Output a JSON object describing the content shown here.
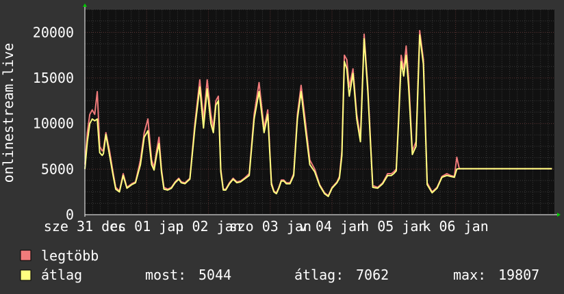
{
  "chart_data": {
    "type": "line",
    "ylabel": "onlinestream.live",
    "ylim": [
      0,
      22500
    ],
    "yticks": [
      0,
      5000,
      10000,
      15000,
      20000
    ],
    "ytick_labels": [
      "0",
      "5000",
      "10000",
      "15000",
      "20000"
    ],
    "x_range": [
      0,
      7.6
    ],
    "xticks": [
      {
        "x": 0.0,
        "label": "sze 31 dec"
      },
      {
        "x": 1.0,
        "label": "cs 01 jan"
      },
      {
        "x": 2.0,
        "label": "p 02 jan"
      },
      {
        "x": 3.0,
        "label": "szo 03 jan"
      },
      {
        "x": 4.0,
        "label": "v 04 jan"
      },
      {
        "x": 5.0,
        "label": "h 05 jan"
      },
      {
        "x": 6.0,
        "label": "k 06 jan"
      }
    ],
    "series": [
      {
        "name": "legtöbb",
        "color": "#f07b7b",
        "x": [
          0.0,
          0.04,
          0.08,
          0.12,
          0.16,
          0.2,
          0.24,
          0.28,
          0.3,
          0.34,
          0.4,
          0.46,
          0.5,
          0.56,
          0.62,
          0.68,
          0.72,
          0.76,
          0.82,
          0.9,
          0.96,
          1.02,
          1.08,
          1.12,
          1.16,
          1.2,
          1.24,
          1.28,
          1.34,
          1.4,
          1.46,
          1.52,
          1.56,
          1.62,
          1.7,
          1.78,
          1.86,
          1.92,
          1.98,
          2.04,
          2.08,
          2.12,
          2.16,
          2.2,
          2.24,
          2.28,
          2.34,
          2.4,
          2.46,
          2.52,
          2.58,
          2.66,
          2.74,
          2.82,
          2.9,
          2.96,
          3.02,
          3.06,
          3.1,
          3.14,
          3.18,
          3.22,
          3.26,
          3.32,
          3.38,
          3.44,
          3.5,
          3.56,
          3.64,
          3.72,
          3.8,
          3.88,
          3.94,
          4.0,
          4.04,
          4.08,
          4.12,
          4.16,
          4.2,
          4.24,
          4.28,
          4.34,
          4.4,
          4.46,
          4.52,
          4.58,
          4.66,
          4.74,
          4.82,
          4.9,
          4.96,
          5.0,
          5.04,
          5.08,
          5.12,
          5.16,
          5.2,
          5.24,
          5.3,
          5.36,
          5.42,
          5.48,
          5.54,
          5.62,
          5.7,
          5.78,
          5.86,
          5.92,
          5.98,
          6.02,
          6.06,
          6.1,
          6.14,
          6.18,
          6.22,
          6.26,
          6.3,
          6.34,
          6.38,
          6.42,
          6.48,
          6.54,
          6.6,
          6.66,
          6.72,
          6.78,
          6.84,
          6.9,
          6.96,
          7.02,
          7.08,
          7.14,
          7.2,
          7.26,
          7.32,
          7.38,
          7.44,
          7.5,
          7.56
        ],
        "y": [
          5500,
          9000,
          11000,
          11500,
          11000,
          13500,
          7500,
          7000,
          7200,
          9000,
          7000,
          4500,
          3000,
          2600,
          4500,
          3000,
          3200,
          3400,
          3600,
          6000,
          9000,
          10500,
          6000,
          5200,
          7000,
          8500,
          5000,
          3000,
          2800,
          3000,
          3600,
          4000,
          3600,
          3500,
          4000,
          10000,
          14800,
          10500,
          14800,
          11000,
          9500,
          12500,
          13000,
          5000,
          2800,
          2800,
          3500,
          4000,
          3600,
          3700,
          4000,
          4500,
          11000,
          14500,
          9500,
          11500,
          3500,
          2600,
          2400,
          3000,
          3800,
          3800,
          3500,
          3500,
          4500,
          11000,
          14200,
          10800,
          6000,
          5000,
          3300,
          2400,
          2100,
          3000,
          3300,
          3600,
          4200,
          7000,
          17500,
          17000,
          14000,
          16000,
          11000,
          8500,
          19800,
          14000,
          3200,
          3000,
          3500,
          4500,
          4500,
          4700,
          5000,
          11000,
          17500,
          16000,
          18500,
          15000,
          7000,
          8000,
          20200,
          17000,
          3500,
          2500,
          3000,
          4200,
          4500,
          4300,
          4200,
          6300,
          5044,
          5044,
          5044,
          5044,
          5044,
          5044,
          5044,
          5044,
          5044,
          5044,
          5044,
          5044,
          5044,
          5044,
          5044,
          5044,
          5044,
          5044,
          5044,
          5044,
          5044,
          5044,
          5044,
          5044,
          5044,
          5044,
          5044,
          5044,
          5044
        ]
      },
      {
        "name": "átlag",
        "color": "#ffff80",
        "x": [
          0.0,
          0.04,
          0.08,
          0.12,
          0.16,
          0.2,
          0.24,
          0.28,
          0.3,
          0.34,
          0.4,
          0.46,
          0.5,
          0.56,
          0.62,
          0.68,
          0.72,
          0.76,
          0.82,
          0.9,
          0.96,
          1.02,
          1.08,
          1.12,
          1.16,
          1.2,
          1.24,
          1.28,
          1.34,
          1.4,
          1.46,
          1.52,
          1.56,
          1.62,
          1.7,
          1.78,
          1.86,
          1.92,
          1.98,
          2.04,
          2.08,
          2.12,
          2.16,
          2.2,
          2.24,
          2.28,
          2.34,
          2.4,
          2.46,
          2.52,
          2.58,
          2.66,
          2.74,
          2.82,
          2.9,
          2.96,
          3.02,
          3.06,
          3.1,
          3.14,
          3.18,
          3.22,
          3.26,
          3.32,
          3.38,
          3.44,
          3.5,
          3.56,
          3.64,
          3.72,
          3.8,
          3.88,
          3.94,
          4.0,
          4.04,
          4.08,
          4.12,
          4.16,
          4.2,
          4.24,
          4.28,
          4.34,
          4.4,
          4.46,
          4.52,
          4.58,
          4.66,
          4.74,
          4.82,
          4.9,
          4.96,
          5.0,
          5.04,
          5.08,
          5.12,
          5.16,
          5.2,
          5.24,
          5.3,
          5.36,
          5.42,
          5.48,
          5.54,
          5.62,
          5.7,
          5.78,
          5.86,
          5.92,
          5.98,
          6.02,
          6.06,
          6.1,
          6.14,
          6.18,
          6.22,
          6.26,
          6.3,
          6.34,
          6.38,
          6.42,
          6.48,
          6.54,
          6.6,
          6.66,
          6.72,
          6.78,
          6.84,
          6.9,
          6.96,
          7.02,
          7.08,
          7.14,
          7.2,
          7.26,
          7.32,
          7.38,
          7.44,
          7.5,
          7.56
        ],
        "y": [
          5000,
          8000,
          10000,
          10500,
          10300,
          10500,
          6800,
          6500,
          6700,
          8800,
          6500,
          4200,
          2800,
          2500,
          4300,
          2900,
          3100,
          3300,
          3500,
          5500,
          8500,
          9200,
          5500,
          4900,
          6500,
          7800,
          4700,
          2800,
          2700,
          2900,
          3500,
          3900,
          3500,
          3400,
          3900,
          9500,
          14000,
          9500,
          13800,
          10000,
          9000,
          12000,
          12500,
          4700,
          2700,
          2700,
          3400,
          3900,
          3500,
          3600,
          3900,
          4300,
          10500,
          13500,
          9000,
          11000,
          3300,
          2500,
          2300,
          2900,
          3700,
          3700,
          3400,
          3400,
          4300,
          10500,
          13500,
          10000,
          5500,
          4700,
          3200,
          2300,
          2000,
          2900,
          3200,
          3500,
          4000,
          6500,
          16800,
          16000,
          13000,
          15500,
          10500,
          8000,
          19300,
          13500,
          3000,
          2900,
          3400,
          4300,
          4300,
          4500,
          4800,
          10500,
          16800,
          15200,
          17500,
          14000,
          6600,
          7500,
          19700,
          16500,
          3300,
          2400,
          2900,
          4100,
          4300,
          4200,
          4100,
          5000,
          5044,
          5044,
          5044,
          5044,
          5044,
          5044,
          5044,
          5044,
          5044,
          5044,
          5044,
          5044,
          5044,
          5044,
          5044,
          5044,
          5044,
          5044,
          5044,
          5044,
          5044,
          5044,
          5044,
          5044,
          5044,
          5044,
          5044,
          5044,
          5044
        ]
      }
    ],
    "grid": true,
    "background": "#111111",
    "grid_color": "#5a3030",
    "legend": {
      "placement": "bottom-left",
      "items": [
        {
          "label": "legtöbb",
          "color": "#f07b7b"
        },
        {
          "label": "átlag",
          "color": "#ffff80"
        }
      ]
    },
    "stats": [
      {
        "label": "most:",
        "value": "5044"
      },
      {
        "label": "átlag:",
        "value": "7062"
      },
      {
        "label": "max:",
        "value": "19807"
      }
    ]
  }
}
